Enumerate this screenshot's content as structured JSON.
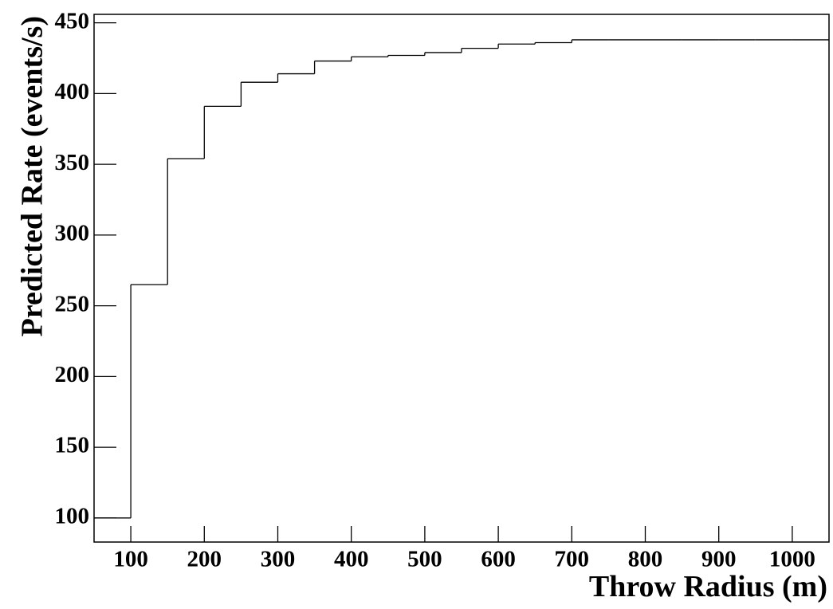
{
  "chart_data": {
    "type": "histogram",
    "x_label": "Throw Radius (m)",
    "y_label": "Predicted Rate (events/s)",
    "bins": [
      50,
      100,
      150,
      200,
      250,
      300,
      350,
      400,
      450,
      500,
      550,
      600,
      650,
      700,
      750,
      800,
      850,
      900,
      950,
      1000,
      1050
    ],
    "values": [
      100,
      265,
      354,
      391,
      408,
      414,
      423,
      426,
      427,
      429,
      432,
      435,
      436,
      438,
      438,
      438,
      438,
      438,
      438,
      438
    ],
    "color": "#000000",
    "xlim": [
      50,
      1050
    ],
    "xticks": [
      100,
      200,
      300,
      400,
      500,
      600,
      700,
      800,
      900,
      1000
    ],
    "ylim": [
      83,
      456
    ],
    "yticks": [
      100,
      150,
      200,
      250,
      300,
      350,
      400,
      450
    ]
  }
}
